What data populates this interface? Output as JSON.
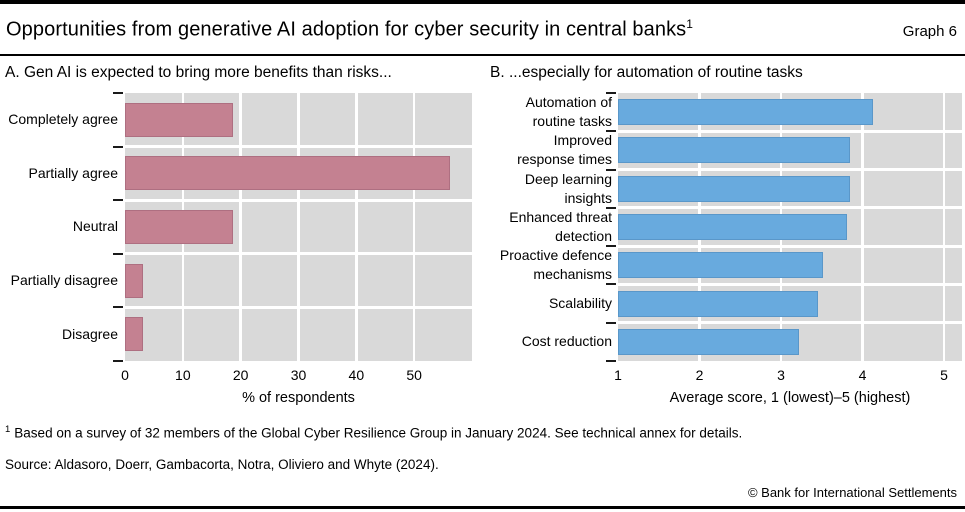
{
  "header": {
    "title": "Opportunities from generative AI adoption for cyber security in central banks",
    "title_footnote_marker": "1",
    "graph_label": "Graph 6"
  },
  "colors": {
    "accent_pink": "#c48191",
    "accent_pink_border": "#ae6f81",
    "accent_blue": "#68aade",
    "accent_blue_border": "#5a97c9",
    "plot_background": "#d9d9d9",
    "gridline": "#ffffff",
    "text": "#000000"
  },
  "chart_data": [
    {
      "type": "bar",
      "orientation": "horizontal",
      "panel": "A",
      "title": "A. Gen AI is expected to bring more benefits than risks...",
      "categories": [
        "Completely agree",
        "Partially agree",
        "Neutral",
        "Partially disagree",
        "Disagree"
      ],
      "values": [
        18.75,
        56.25,
        18.75,
        3.125,
        3.125
      ],
      "xlabel": "% of respondents",
      "xlim": [
        0,
        60
      ],
      "xticks": [
        0,
        10,
        20,
        30,
        40,
        50
      ],
      "grid": true,
      "legend": "none",
      "bar_color": "#c48191",
      "bar_border_color": "#ae6f81"
    },
    {
      "type": "bar",
      "orientation": "horizontal",
      "panel": "B",
      "title": "B. ...especially for automation of routine tasks",
      "categories": [
        "Automation of routine tasks",
        "Improved response times",
        "Deep learning insights",
        "Enhanced threat detection",
        "Proactive defence mechanisms",
        "Scalability",
        "Cost reduction"
      ],
      "category_lines": [
        [
          "Automation of",
          "routine tasks"
        ],
        [
          "Improved",
          "response times"
        ],
        [
          "Deep learning",
          "insights"
        ],
        [
          "Enhanced threat",
          "detection"
        ],
        [
          "Proactive defence",
          "mechanisms"
        ],
        [
          "Scalability"
        ],
        [
          "Cost reduction"
        ]
      ],
      "values": [
        4.13,
        3.84,
        3.84,
        3.81,
        3.52,
        3.45,
        3.22
      ],
      "xlabel": "Average score, 1 (lowest)–5 (highest)",
      "xlim": [
        1,
        5.22
      ],
      "xticks": [
        1,
        2,
        3,
        4,
        5
      ],
      "grid": true,
      "legend": "none",
      "bar_color": "#68aade",
      "bar_border_color": "#5a97c9"
    }
  ],
  "footnote": {
    "marker": "1",
    "text": "Based on a survey of 32 members of the Global Cyber Resilience Group in January 2024. See technical annex for details."
  },
  "source": "Source: Aldasoro, Doerr, Gambacorta, Notra, Oliviero and Whyte (2024).",
  "copyright": "© Bank for International Settlements"
}
